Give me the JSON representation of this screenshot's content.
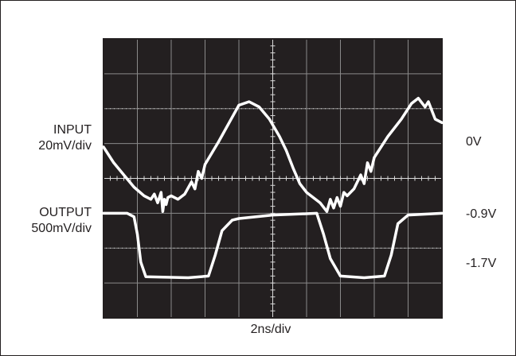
{
  "chart_data": {
    "type": "line",
    "title": "",
    "xlabel": "2ns/div",
    "ylabel": "",
    "grid": true,
    "divisions": {
      "x": 10,
      "y": 8
    },
    "left_labels": [
      {
        "lines": [
          "INPUT",
          "20mV/div"
        ]
      },
      {
        "lines": [
          "OUTPUT",
          "500mV/div"
        ]
      }
    ],
    "right_labels": [
      "0V",
      "-0.9V",
      "-1.7V"
    ],
    "series": [
      {
        "trace": "input",
        "x": [
          0.0,
          0.3,
          0.6,
          0.9,
          1.2,
          1.4,
          1.5,
          1.6,
          1.7,
          1.75,
          1.8,
          1.85,
          1.9,
          2.0,
          2.2,
          2.4,
          2.6,
          2.7,
          2.8,
          2.9,
          3.0,
          3.4,
          3.8,
          4.0,
          4.3,
          4.6,
          4.9,
          5.2,
          5.4,
          5.6,
          5.8,
          6.0,
          6.4,
          6.6,
          6.7,
          6.8,
          6.9,
          7.0,
          7.1,
          7.2,
          7.4,
          7.6,
          7.7,
          7.8,
          7.9,
          8.0,
          8.4,
          8.8,
          9.1,
          9.3,
          9.5,
          9.6,
          9.8,
          10.0
        ],
        "y": [
          0.9,
          0.45,
          0.1,
          -0.25,
          -0.5,
          -0.6,
          -0.45,
          -0.7,
          -0.4,
          -0.95,
          -0.6,
          -0.75,
          -0.55,
          -0.5,
          -0.6,
          -0.45,
          -0.1,
          -0.3,
          0.2,
          0.0,
          0.4,
          1.05,
          1.75,
          2.1,
          2.2,
          2.05,
          1.7,
          1.2,
          0.8,
          0.3,
          -0.15,
          -0.4,
          -0.7,
          -0.95,
          -0.6,
          -0.85,
          -0.55,
          -0.8,
          -0.4,
          -0.5,
          -0.3,
          0.1,
          -0.15,
          0.45,
          0.2,
          0.6,
          1.2,
          1.7,
          2.15,
          2.3,
          2.05,
          2.2,
          1.7,
          1.6
        ]
      },
      {
        "trace": "output",
        "x": [
          0.0,
          0.7,
          0.9,
          1.0,
          1.1,
          1.25,
          2.5,
          3.1,
          3.3,
          3.5,
          3.8,
          4.0,
          5.0,
          6.3,
          6.5,
          6.7,
          7.0,
          7.7,
          8.3,
          8.5,
          8.7,
          9.0,
          10.0
        ],
        "y": [
          -1.0,
          -1.0,
          -1.1,
          -1.6,
          -2.4,
          -2.82,
          -2.85,
          -2.8,
          -2.2,
          -1.5,
          -1.2,
          -1.15,
          -1.05,
          -1.0,
          -1.6,
          -2.3,
          -2.8,
          -2.85,
          -2.8,
          -2.2,
          -1.3,
          -1.05,
          -1.0
        ]
      }
    ]
  }
}
